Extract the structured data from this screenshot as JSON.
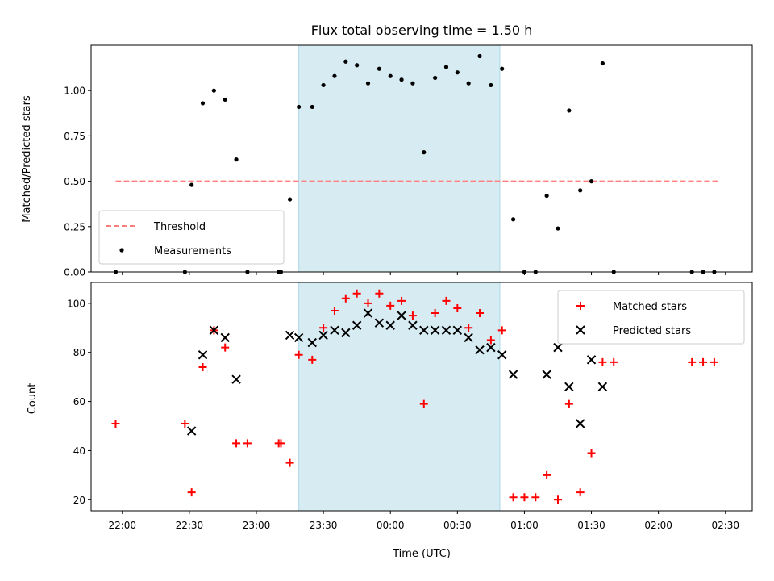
{
  "chart_data": {
    "title": "Flux total observing time = 1.50 h",
    "xlabel": "Time (UTC)",
    "x_tick_labels": [
      "22:00",
      "22:30",
      "23:00",
      "23:30",
      "00:00",
      "00:30",
      "01:00",
      "01:30",
      "02:00",
      "02:30"
    ],
    "x_tick_times": [
      "2024-01-01T22:00",
      "2024-01-01T22:30",
      "2024-01-01T23:00",
      "2024-01-01T23:30",
      "2024-01-02T00:00",
      "2024-01-02T00:30",
      "2024-01-02T01:00",
      "2024-01-02T01:30",
      "2024-01-02T02:00",
      "2024-01-02T02:30"
    ],
    "xlim": [
      "2024-01-01T21:46",
      "2024-01-02T02:42"
    ],
    "highlight_span": {
      "start": "2024-01-01T23:19",
      "end": "2024-01-02T00:49",
      "color": "#add8e6"
    },
    "panels": [
      {
        "type": "scatter",
        "ylabel": "Matched/Predicted stars",
        "ylim": [
          0,
          1.25
        ],
        "y_ticks": [
          0,
          0.25,
          0.5,
          0.75,
          1.0
        ],
        "y_tick_labels": [
          "0.00",
          "0.25",
          "0.50",
          "0.75",
          "1.00"
        ],
        "legend_position": "lower-left",
        "series": [
          {
            "name": "Threshold",
            "type": "line",
            "style": "dashed",
            "color": "#ff7f7f",
            "x": [
              "2024-01-01T21:57",
              "2024-01-02T02:27"
            ],
            "y": [
              0.5,
              0.5
            ]
          },
          {
            "name": "Measurements",
            "type": "scatter",
            "marker": "dot",
            "color": "#000000",
            "x": [
              "2024-01-01T21:57",
              "2024-01-01T22:28",
              "2024-01-01T22:31",
              "2024-01-01T22:36",
              "2024-01-01T22:41",
              "2024-01-01T22:46",
              "2024-01-01T22:51",
              "2024-01-01T22:56",
              "2024-01-01T23:10",
              "2024-01-01T23:11",
              "2024-01-01T23:15",
              "2024-01-01T23:19",
              "2024-01-01T23:25",
              "2024-01-01T23:30",
              "2024-01-01T23:35",
              "2024-01-01T23:40",
              "2024-01-01T23:45",
              "2024-01-01T23:50",
              "2024-01-01T23:55",
              "2024-01-02T00:00",
              "2024-01-02T00:05",
              "2024-01-02T00:10",
              "2024-01-02T00:15",
              "2024-01-02T00:20",
              "2024-01-02T00:25",
              "2024-01-02T00:30",
              "2024-01-02T00:35",
              "2024-01-02T00:40",
              "2024-01-02T00:45",
              "2024-01-02T00:50",
              "2024-01-02T00:55",
              "2024-01-02T01:00",
              "2024-01-02T01:05",
              "2024-01-02T01:10",
              "2024-01-02T01:15",
              "2024-01-02T01:20",
              "2024-01-02T01:25",
              "2024-01-02T01:30",
              "2024-01-02T01:35",
              "2024-01-02T01:40",
              "2024-01-02T02:15",
              "2024-01-02T02:20",
              "2024-01-02T02:25"
            ],
            "y": [
              0.0,
              0.0,
              0.48,
              0.93,
              1.0,
              0.95,
              0.62,
              0.0,
              0.0,
              0.0,
              0.4,
              0.91,
              0.91,
              1.03,
              1.08,
              1.16,
              1.14,
              1.04,
              1.12,
              1.08,
              1.06,
              1.04,
              0.66,
              1.07,
              1.13,
              1.1,
              1.04,
              1.19,
              1.03,
              1.12,
              0.29,
              0.0,
              0.0,
              0.42,
              0.24,
              0.89,
              0.45,
              0.5,
              1.15,
              0.0,
              0.0,
              0.0,
              0.0
            ]
          }
        ]
      },
      {
        "type": "scatter",
        "ylabel": "Count",
        "ylim": [
          15.5,
          108.5
        ],
        "y_ticks": [
          20,
          40,
          60,
          80,
          100
        ],
        "y_tick_labels": [
          "20",
          "40",
          "60",
          "80",
          "100"
        ],
        "legend_position": "upper-right",
        "series": [
          {
            "name": "Matched stars",
            "type": "scatter",
            "marker": "plus",
            "color": "#ff0000",
            "x": [
              "2024-01-01T21:57",
              "2024-01-01T22:28",
              "2024-01-01T22:31",
              "2024-01-01T22:36",
              "2024-01-01T22:41",
              "2024-01-01T22:46",
              "2024-01-01T22:51",
              "2024-01-01T22:56",
              "2024-01-01T23:10",
              "2024-01-01T23:11",
              "2024-01-01T23:15",
              "2024-01-01T23:19",
              "2024-01-01T23:25",
              "2024-01-01T23:30",
              "2024-01-01T23:35",
              "2024-01-01T23:40",
              "2024-01-01T23:45",
              "2024-01-01T23:50",
              "2024-01-01T23:55",
              "2024-01-02T00:00",
              "2024-01-02T00:05",
              "2024-01-02T00:10",
              "2024-01-02T00:15",
              "2024-01-02T00:20",
              "2024-01-02T00:25",
              "2024-01-02T00:30",
              "2024-01-02T00:35",
              "2024-01-02T00:40",
              "2024-01-02T00:45",
              "2024-01-02T00:50",
              "2024-01-02T00:55",
              "2024-01-02T01:00",
              "2024-01-02T01:05",
              "2024-01-02T01:10",
              "2024-01-02T01:15",
              "2024-01-02T01:20",
              "2024-01-02T01:25",
              "2024-01-02T01:30",
              "2024-01-02T01:35",
              "2024-01-02T01:40",
              "2024-01-02T02:15",
              "2024-01-02T02:20",
              "2024-01-02T02:25"
            ],
            "y": [
              51,
              51,
              23,
              74,
              89,
              82,
              43,
              43,
              43,
              43,
              35,
              79,
              77,
              90,
              97,
              102,
              104,
              100,
              104,
              99,
              101,
              95,
              59,
              96,
              101,
              98,
              90,
              96,
              85,
              89,
              21,
              21,
              21,
              30,
              20,
              59,
              23,
              39,
              76,
              76,
              76,
              76,
              76
            ]
          },
          {
            "name": "Predicted stars",
            "type": "scatter",
            "marker": "x",
            "color": "#000000",
            "x": [
              "2024-01-01T22:31",
              "2024-01-01T22:36",
              "2024-01-01T22:41",
              "2024-01-01T22:46",
              "2024-01-01T22:51",
              "2024-01-01T23:15",
              "2024-01-01T23:19",
              "2024-01-01T23:25",
              "2024-01-01T23:30",
              "2024-01-01T23:35",
              "2024-01-01T23:40",
              "2024-01-01T23:45",
              "2024-01-01T23:50",
              "2024-01-01T23:55",
              "2024-01-02T00:00",
              "2024-01-02T00:05",
              "2024-01-02T00:10",
              "2024-01-02T00:15",
              "2024-01-02T00:20",
              "2024-01-02T00:25",
              "2024-01-02T00:30",
              "2024-01-02T00:35",
              "2024-01-02T00:40",
              "2024-01-02T00:45",
              "2024-01-02T00:50",
              "2024-01-02T00:55",
              "2024-01-02T01:10",
              "2024-01-02T01:15",
              "2024-01-02T01:20",
              "2024-01-02T01:25",
              "2024-01-02T01:30",
              "2024-01-02T01:35"
            ],
            "y": [
              48,
              79,
              89,
              86,
              69,
              87,
              86,
              84,
              87,
              89,
              88,
              91,
              96,
              92,
              91,
              95,
              91,
              89,
              89,
              89,
              89,
              86,
              81,
              82,
              79,
              71,
              71,
              82,
              66,
              51,
              77,
              66
            ]
          }
        ]
      }
    ]
  }
}
